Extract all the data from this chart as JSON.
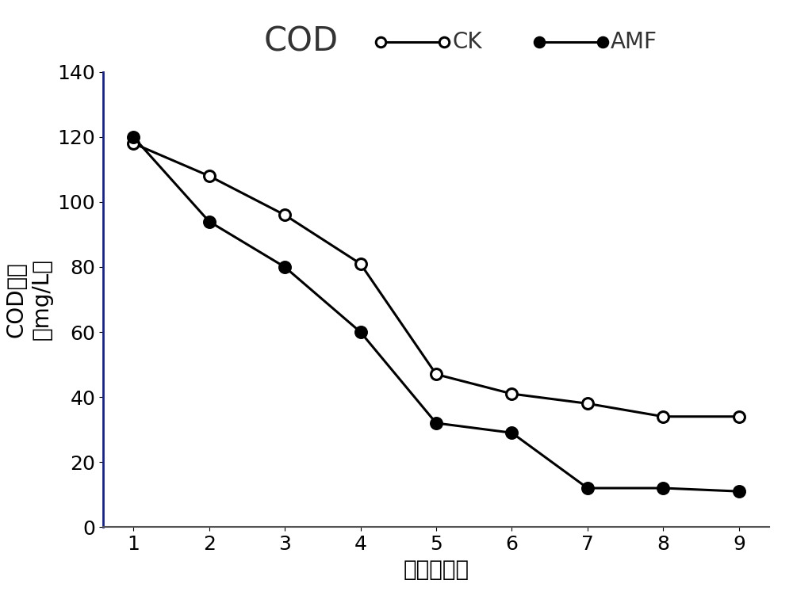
{
  "title": "COD",
  "xlabel": "时间（天）",
  "ylabel_line1": "COD浓度",
  "ylabel_line2": "（mg/L）",
  "x": [
    1,
    2,
    3,
    4,
    5,
    6,
    7,
    8,
    9
  ],
  "ck_y": [
    118,
    108,
    96,
    81,
    47,
    41,
    38,
    34,
    34
  ],
  "amf_y": [
    120,
    94,
    80,
    60,
    32,
    29,
    12,
    12,
    11
  ],
  "ylim": [
    0,
    140
  ],
  "yticks": [
    0,
    20,
    40,
    60,
    80,
    100,
    120,
    140
  ],
  "xticks": [
    1,
    2,
    3,
    4,
    5,
    6,
    7,
    8,
    9
  ],
  "ck_label": "CK",
  "amf_label": "AMF",
  "line_color": "#000000",
  "left_spine_color": "#1a237e",
  "title_fontsize": 30,
  "axis_label_fontsize": 20,
  "tick_fontsize": 18,
  "legend_fontsize": 20,
  "background_color": "#ffffff"
}
